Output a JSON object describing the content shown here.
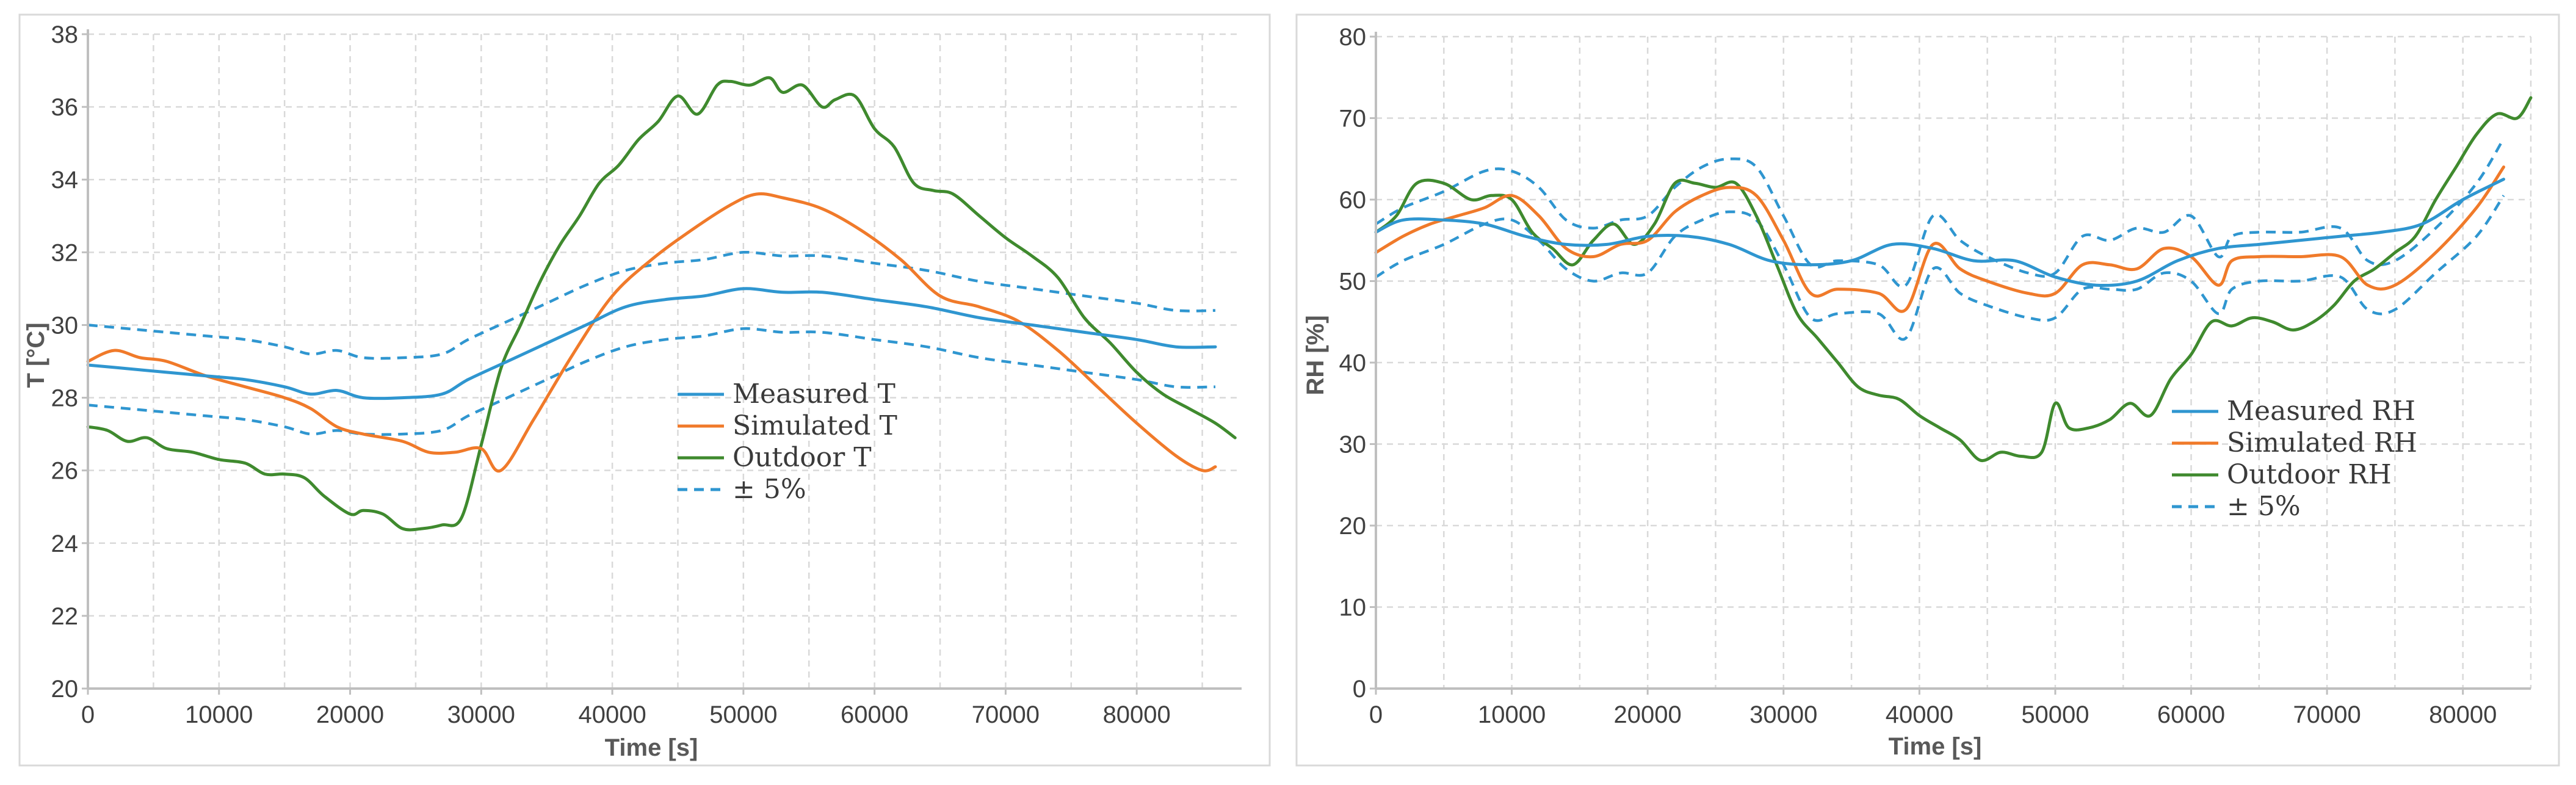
{
  "colors": {
    "measured": "#2f96d0",
    "simulated": "#f07a2a",
    "outdoor": "#3f8a2e",
    "band": "#2f96d0"
  },
  "chart_data": [
    {
      "type": "line",
      "title": "",
      "xlabel": "Time [s]",
      "ylabel": "T [°C]",
      "xlim": [
        0,
        88000
      ],
      "ylim": [
        20,
        38
      ],
      "xticks": [
        "0",
        "10000",
        "20000",
        "30000",
        "40000",
        "50000",
        "60000",
        "70000",
        "80000"
      ],
      "yticks": [
        "20",
        "22",
        "24",
        "26",
        "28",
        "30",
        "32",
        "34",
        "36",
        "38"
      ],
      "legend": [
        "Measured T",
        "Simulated T",
        "Outdoor T",
        "± 5%"
      ],
      "series": [
        {
          "name": "Measured T",
          "style": "solid",
          "color": "measured",
          "x": [
            0,
            3000,
            6000,
            9000,
            12000,
            15000,
            17000,
            19000,
            21000,
            24000,
            27000,
            29000,
            32000,
            35000,
            38000,
            41000,
            44000,
            47000,
            50000,
            53000,
            56000,
            60000,
            64000,
            68000,
            72000,
            76000,
            80000,
            83000,
            86000
          ],
          "y": [
            28.9,
            28.8,
            28.7,
            28.6,
            28.5,
            28.3,
            28.1,
            28.2,
            28.0,
            28.0,
            28.1,
            28.5,
            29.0,
            29.5,
            30.0,
            30.5,
            30.7,
            30.8,
            31.0,
            30.9,
            30.9,
            30.7,
            30.5,
            30.2,
            30.0,
            29.8,
            29.6,
            29.4,
            29.4
          ]
        },
        {
          "name": "Simulated T",
          "style": "solid",
          "color": "simulated",
          "x": [
            0,
            2000,
            4000,
            6000,
            9000,
            12000,
            15000,
            17000,
            19000,
            21000,
            24000,
            26000,
            28000,
            30000,
            31500,
            34000,
            37000,
            40000,
            43000,
            46000,
            49000,
            51000,
            53000,
            56000,
            59000,
            62000,
            65000,
            68000,
            71000,
            74000,
            77000,
            80000,
            83000,
            85000,
            86000
          ],
          "y": [
            29.0,
            29.3,
            29.1,
            29.0,
            28.6,
            28.3,
            28.0,
            27.7,
            27.2,
            27.0,
            26.8,
            26.5,
            26.5,
            26.6,
            26.0,
            27.4,
            29.2,
            30.8,
            31.8,
            32.6,
            33.3,
            33.6,
            33.5,
            33.2,
            32.6,
            31.8,
            30.8,
            30.5,
            30.1,
            29.3,
            28.3,
            27.3,
            26.4,
            26.0,
            26.1
          ]
        },
        {
          "name": "Outdoor T",
          "style": "solid",
          "color": "outdoor",
          "x": [
            0,
            1500,
            3000,
            4500,
            6000,
            8000,
            10000,
            12000,
            13500,
            15000,
            16500,
            18000,
            20000,
            21000,
            22500,
            24000,
            25500,
            27000,
            28500,
            30000,
            31500,
            33000,
            34500,
            36000,
            37500,
            39000,
            40500,
            42000,
            43500,
            45000,
            46500,
            48000,
            49000,
            50500,
            52000,
            53000,
            54500,
            56000,
            57000,
            58500,
            60000,
            61500,
            63000,
            64500,
            66000,
            68000,
            70000,
            72000,
            74000,
            76000,
            78000,
            80000,
            82000,
            84000,
            86000,
            87500
          ],
          "y": [
            27.2,
            27.1,
            26.8,
            26.9,
            26.6,
            26.5,
            26.3,
            26.2,
            25.9,
            25.9,
            25.8,
            25.3,
            24.8,
            24.9,
            24.8,
            24.4,
            24.4,
            24.5,
            24.7,
            26.7,
            28.8,
            30.0,
            31.2,
            32.2,
            33.0,
            33.9,
            34.4,
            35.1,
            35.6,
            36.3,
            35.8,
            36.6,
            36.7,
            36.6,
            36.8,
            36.4,
            36.6,
            36.0,
            36.2,
            36.3,
            35.4,
            34.9,
            33.9,
            33.7,
            33.6,
            33.0,
            32.4,
            31.9,
            31.3,
            30.2,
            29.5,
            28.7,
            28.1,
            27.7,
            27.3,
            26.9
          ]
        },
        {
          "name": "+5%",
          "style": "dashed",
          "color": "band",
          "x": [
            0,
            3000,
            6000,
            9000,
            12000,
            15000,
            17000,
            19000,
            21000,
            24000,
            27000,
            29000,
            32000,
            35000,
            38000,
            41000,
            44000,
            47000,
            50000,
            53000,
            56000,
            60000,
            64000,
            68000,
            72000,
            76000,
            80000,
            83000,
            86000
          ],
          "y": [
            30.0,
            29.9,
            29.8,
            29.7,
            29.6,
            29.4,
            29.2,
            29.3,
            29.1,
            29.1,
            29.2,
            29.6,
            30.1,
            30.6,
            31.1,
            31.5,
            31.7,
            31.8,
            32.0,
            31.9,
            31.9,
            31.7,
            31.5,
            31.2,
            31.0,
            30.8,
            30.6,
            30.4,
            30.4
          ]
        },
        {
          "name": "-5%",
          "style": "dashed",
          "color": "band",
          "x": [
            0,
            3000,
            6000,
            9000,
            12000,
            15000,
            17000,
            19000,
            21000,
            24000,
            27000,
            29000,
            32000,
            35000,
            38000,
            41000,
            44000,
            47000,
            50000,
            53000,
            56000,
            60000,
            64000,
            68000,
            72000,
            76000,
            80000,
            83000,
            86000
          ],
          "y": [
            27.8,
            27.7,
            27.6,
            27.5,
            27.4,
            27.2,
            27.0,
            27.1,
            27.0,
            27.0,
            27.1,
            27.5,
            28.0,
            28.5,
            29.0,
            29.4,
            29.6,
            29.7,
            29.9,
            29.8,
            29.8,
            29.6,
            29.4,
            29.1,
            28.9,
            28.7,
            28.5,
            28.3,
            28.3
          ]
        }
      ]
    },
    {
      "type": "line",
      "title": "",
      "xlabel": "Time [s]",
      "ylabel": "RH [%]",
      "xlim": [
        0,
        85000
      ],
      "ylim": [
        0,
        80
      ],
      "xticks": [
        "0",
        "10000",
        "20000",
        "30000",
        "40000",
        "50000",
        "60000",
        "70000",
        "80000"
      ],
      "yticks": [
        "0",
        "10",
        "20",
        "30",
        "40",
        "50",
        "60",
        "70",
        "80"
      ],
      "legend": [
        "Measured RH",
        "Simulated RH",
        "Outdoor RH",
        "± 5%"
      ],
      "series": [
        {
          "name": "Measured RH",
          "style": "solid",
          "color": "measured",
          "x": [
            0,
            2000,
            5000,
            8000,
            11000,
            14000,
            17000,
            20000,
            23000,
            26000,
            29000,
            32000,
            35000,
            38000,
            41000,
            44000,
            47000,
            50000,
            53000,
            56000,
            59000,
            62000,
            65000,
            68000,
            71000,
            74000,
            77000,
            80000,
            83000
          ],
          "y": [
            56,
            57.5,
            57.5,
            57,
            55.5,
            54.5,
            54.5,
            55.5,
            55.5,
            54.5,
            52.5,
            52,
            52.5,
            54.5,
            54,
            52.5,
            52.5,
            50.5,
            49.5,
            50,
            52.5,
            54,
            54.5,
            55,
            55.5,
            56,
            57,
            60,
            62.5
          ]
        },
        {
          "name": "Simulated RH",
          "style": "solid",
          "color": "simulated",
          "x": [
            0,
            2000,
            4000,
            6000,
            8000,
            10000,
            12000,
            14000,
            16000,
            18000,
            20000,
            22000,
            24000,
            26000,
            28000,
            30000,
            32000,
            34000,
            37000,
            39000,
            41000,
            43000,
            45000,
            48000,
            50000,
            52000,
            54000,
            56000,
            58000,
            60000,
            62000,
            63000,
            65000,
            68000,
            71000,
            73000,
            75000,
            78000,
            81000,
            83000
          ],
          "y": [
            53.5,
            55.5,
            57,
            58,
            59,
            60.5,
            58,
            54,
            53,
            54.5,
            55,
            58.5,
            60.5,
            61.5,
            60.5,
            55,
            48.5,
            49,
            48.5,
            46.5,
            54.5,
            51.5,
            50,
            48.5,
            48.5,
            52,
            52,
            51.5,
            54,
            53,
            49.5,
            52.5,
            53,
            53,
            53,
            49.5,
            49.5,
            53.5,
            59,
            64
          ]
        },
        {
          "name": "Outdoor RH",
          "style": "solid",
          "color": "outdoor",
          "x": [
            0,
            1500,
            3000,
            5000,
            7000,
            8500,
            10000,
            11500,
            13000,
            14500,
            16000,
            17500,
            19000,
            20500,
            22000,
            23500,
            25000,
            26500,
            28000,
            29500,
            31000,
            32500,
            34000,
            35500,
            37000,
            38500,
            40000,
            41500,
            43000,
            44500,
            46000,
            47500,
            49000,
            50000,
            51000,
            52500,
            54000,
            55500,
            57000,
            58500,
            60000,
            61500,
            63000,
            64500,
            66000,
            67500,
            69000,
            70500,
            72000,
            73500,
            75000,
            76500,
            78000,
            79500,
            81000,
            82500,
            84000,
            85000
          ],
          "y": [
            56,
            58,
            62,
            62,
            60,
            60.5,
            60,
            56,
            54,
            52,
            55,
            57,
            54.5,
            57,
            62,
            62,
            61.5,
            62,
            58,
            52,
            46,
            43,
            40,
            37,
            36,
            35.5,
            33.5,
            32,
            30.5,
            28,
            29,
            28.5,
            29,
            35,
            32,
            32,
            33,
            35,
            33.5,
            38,
            41,
            45,
            44.5,
            45.5,
            45,
            44,
            45,
            47,
            50,
            51.5,
            53.5,
            55.5,
            60,
            64,
            68,
            70.5,
            70,
            72.5
          ]
        },
        {
          "name": "+5%",
          "style": "dashed",
          "color": "band",
          "x": [
            0,
            2000,
            5000,
            8000,
            10000,
            12000,
            14000,
            16000,
            18000,
            20000,
            22000,
            24000,
            26000,
            28000,
            30000,
            32000,
            34000,
            37000,
            39000,
            41000,
            43000,
            45000,
            48000,
            50000,
            52000,
            54000,
            56000,
            58000,
            60000,
            62000,
            63000,
            65000,
            68000,
            71000,
            73000,
            75000,
            78000,
            81000,
            83000
          ],
          "y": [
            57,
            59,
            61,
            63.5,
            63.5,
            61.5,
            57.5,
            56.5,
            57.5,
            58,
            61.5,
            64,
            65,
            64,
            58,
            52,
            52.5,
            52,
            49.5,
            58,
            55,
            53,
            51,
            51,
            55.5,
            55,
            56.5,
            56,
            58,
            53,
            55.5,
            56,
            56,
            56.5,
            52.5,
            52.5,
            56.5,
            62,
            67.5
          ]
        },
        {
          "name": "-5%",
          "style": "dashed",
          "color": "band",
          "x": [
            0,
            2000,
            5000,
            8000,
            10000,
            12000,
            14000,
            16000,
            18000,
            20000,
            22000,
            24000,
            26000,
            28000,
            30000,
            32000,
            34000,
            37000,
            39000,
            41000,
            43000,
            45000,
            48000,
            50000,
            52000,
            54000,
            56000,
            58000,
            60000,
            62000,
            63000,
            65000,
            68000,
            71000,
            73000,
            75000,
            78000,
            81000,
            83000
          ],
          "y": [
            50.5,
            52.5,
            54.5,
            57,
            57.5,
            55,
            51.5,
            50,
            51,
            51,
            55.5,
            57.5,
            58.5,
            57.5,
            52,
            45.5,
            46,
            46,
            43,
            51.5,
            48.5,
            47,
            45.5,
            45.5,
            49,
            49,
            49,
            51,
            50,
            46,
            49,
            50,
            50,
            50.5,
            46.5,
            46.5,
            51,
            55.5,
            60.5
          ]
        }
      ]
    }
  ]
}
